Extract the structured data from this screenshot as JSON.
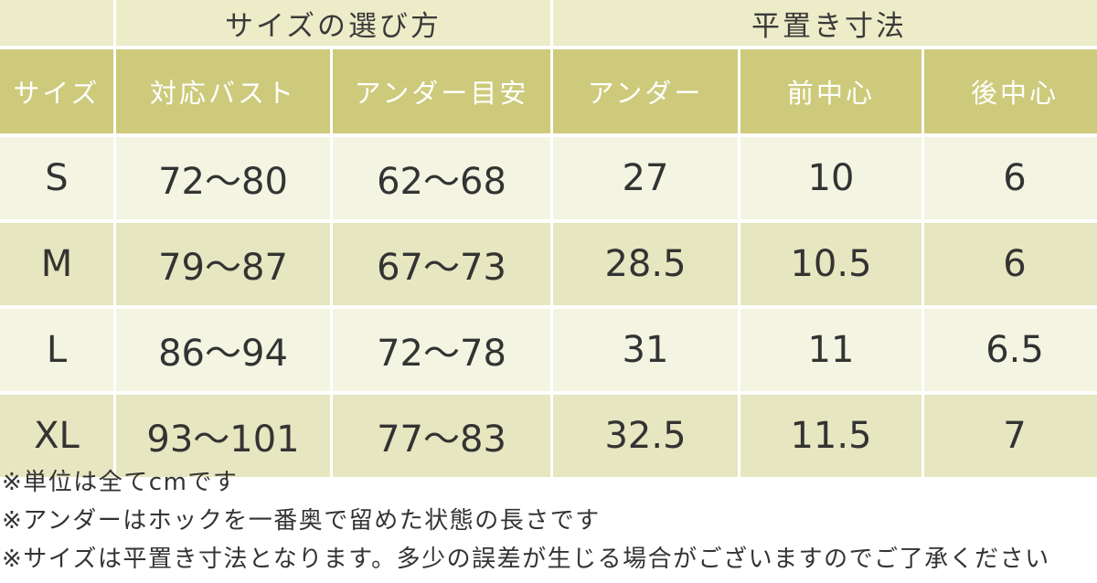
{
  "table": {
    "group_headers": {
      "size_guide": "サイズの選び方",
      "flat_measurements": "平置き寸法"
    },
    "columns": {
      "size": "サイズ",
      "bust": "対応バスト",
      "under_guide": "アンダー目安",
      "under": "アンダー",
      "front_center": "前中心",
      "back_center": "後中心"
    },
    "rows": [
      {
        "size": "S",
        "bust": "72〜80",
        "under_guide": "62〜68",
        "under": "27",
        "front_center": "10",
        "back_center": "6"
      },
      {
        "size": "M",
        "bust": "79〜87",
        "under_guide": "67〜73",
        "under": "28.5",
        "front_center": "10.5",
        "back_center": "6"
      },
      {
        "size": "L",
        "bust": "86〜94",
        "under_guide": "72〜78",
        "under": "31",
        "front_center": "11",
        "back_center": "6.5"
      },
      {
        "size": "XL",
        "bust": "93〜101",
        "under_guide": "77〜83",
        "under": "32.5",
        "front_center": "11.5",
        "back_center": "7"
      }
    ]
  },
  "notes": [
    "※単位は全てcmです",
    "※アンダーはホックを一番奥で留めた状態の長さです",
    "※サイズは平置き寸法となります。多少の誤差が生じる場合がございますのでご了承ください"
  ],
  "colors": {
    "group_header_bg": "#edecc9",
    "column_header_bg": "#cdca7c",
    "row_light_bg": "#f4f4e3",
    "row_dark_bg": "#e6e6c0"
  }
}
